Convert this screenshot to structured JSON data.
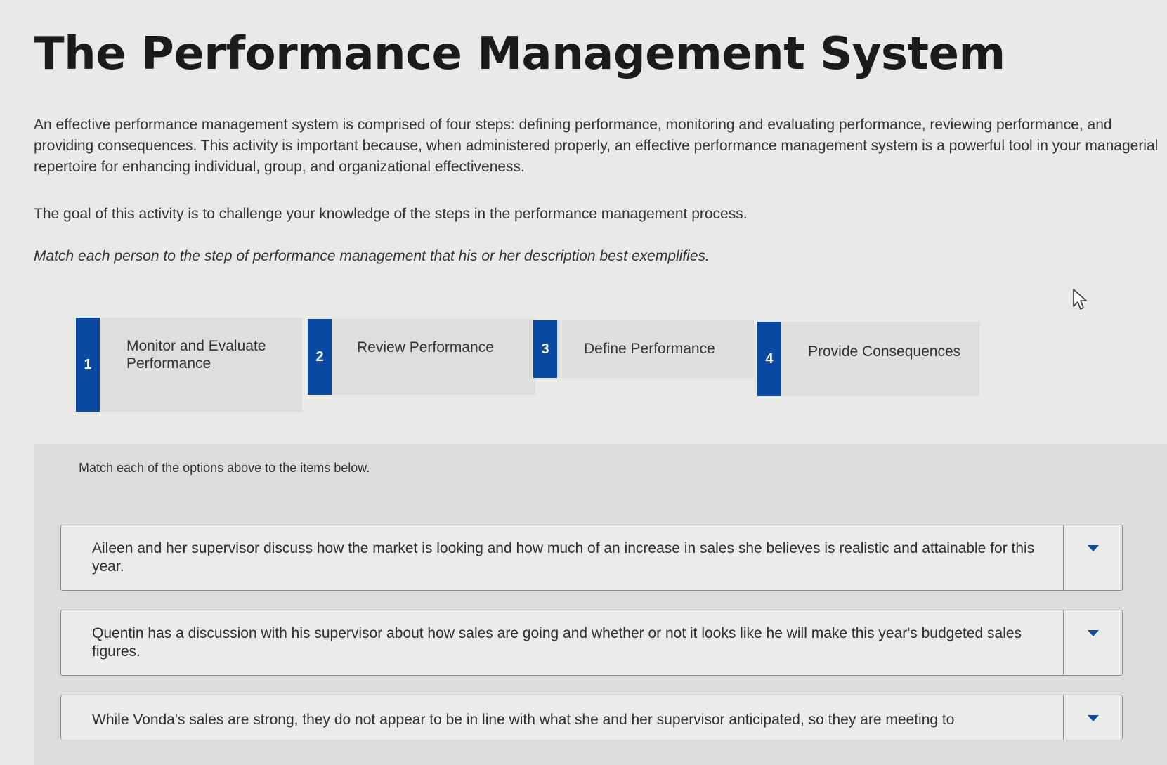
{
  "page": {
    "title": "The Performance Management System",
    "intro": "An effective performance management system is comprised of four steps: defining performance, monitoring and evaluating performance, reviewing performance, and providing consequences. This activity is important because, when administered properly, an effective performance management system is a powerful tool in your managerial repertoire for enhancing individual, group, and organizational effectiveness.",
    "goal": "The goal of this activity is to challenge your knowledge of the steps in the performance management process.",
    "instruction": "Match each person to the step of performance management that his or her description best exemplifies."
  },
  "options": [
    {
      "number": "1",
      "label": "Monitor and Evaluate Performance"
    },
    {
      "number": "2",
      "label": "Review Performance"
    },
    {
      "number": "3",
      "label": "Define Performance"
    },
    {
      "number": "4",
      "label": "Provide Consequences"
    }
  ],
  "match": {
    "instruction": "Match each of the options above to the items below.",
    "items": [
      {
        "text": "Aileen and her supervisor discuss how the market is looking and how much of an increase in sales she believes is realistic and attainable for this year."
      },
      {
        "text": "Quentin has a discussion with his supervisor about how sales are going and whether or not it looks like he will make this year's budgeted sales figures."
      },
      {
        "text": "While Vonda's sales are strong, they do not appear to be in line with what she and her supervisor anticipated, so they are meeting to"
      }
    ]
  },
  "colors": {
    "accent": "#0b4aa3",
    "background": "#e9e9e7",
    "panel": "#dcdcda"
  },
  "icons": {
    "dropdown": "chevron-down-icon",
    "cursor": "mouse-pointer-icon"
  }
}
